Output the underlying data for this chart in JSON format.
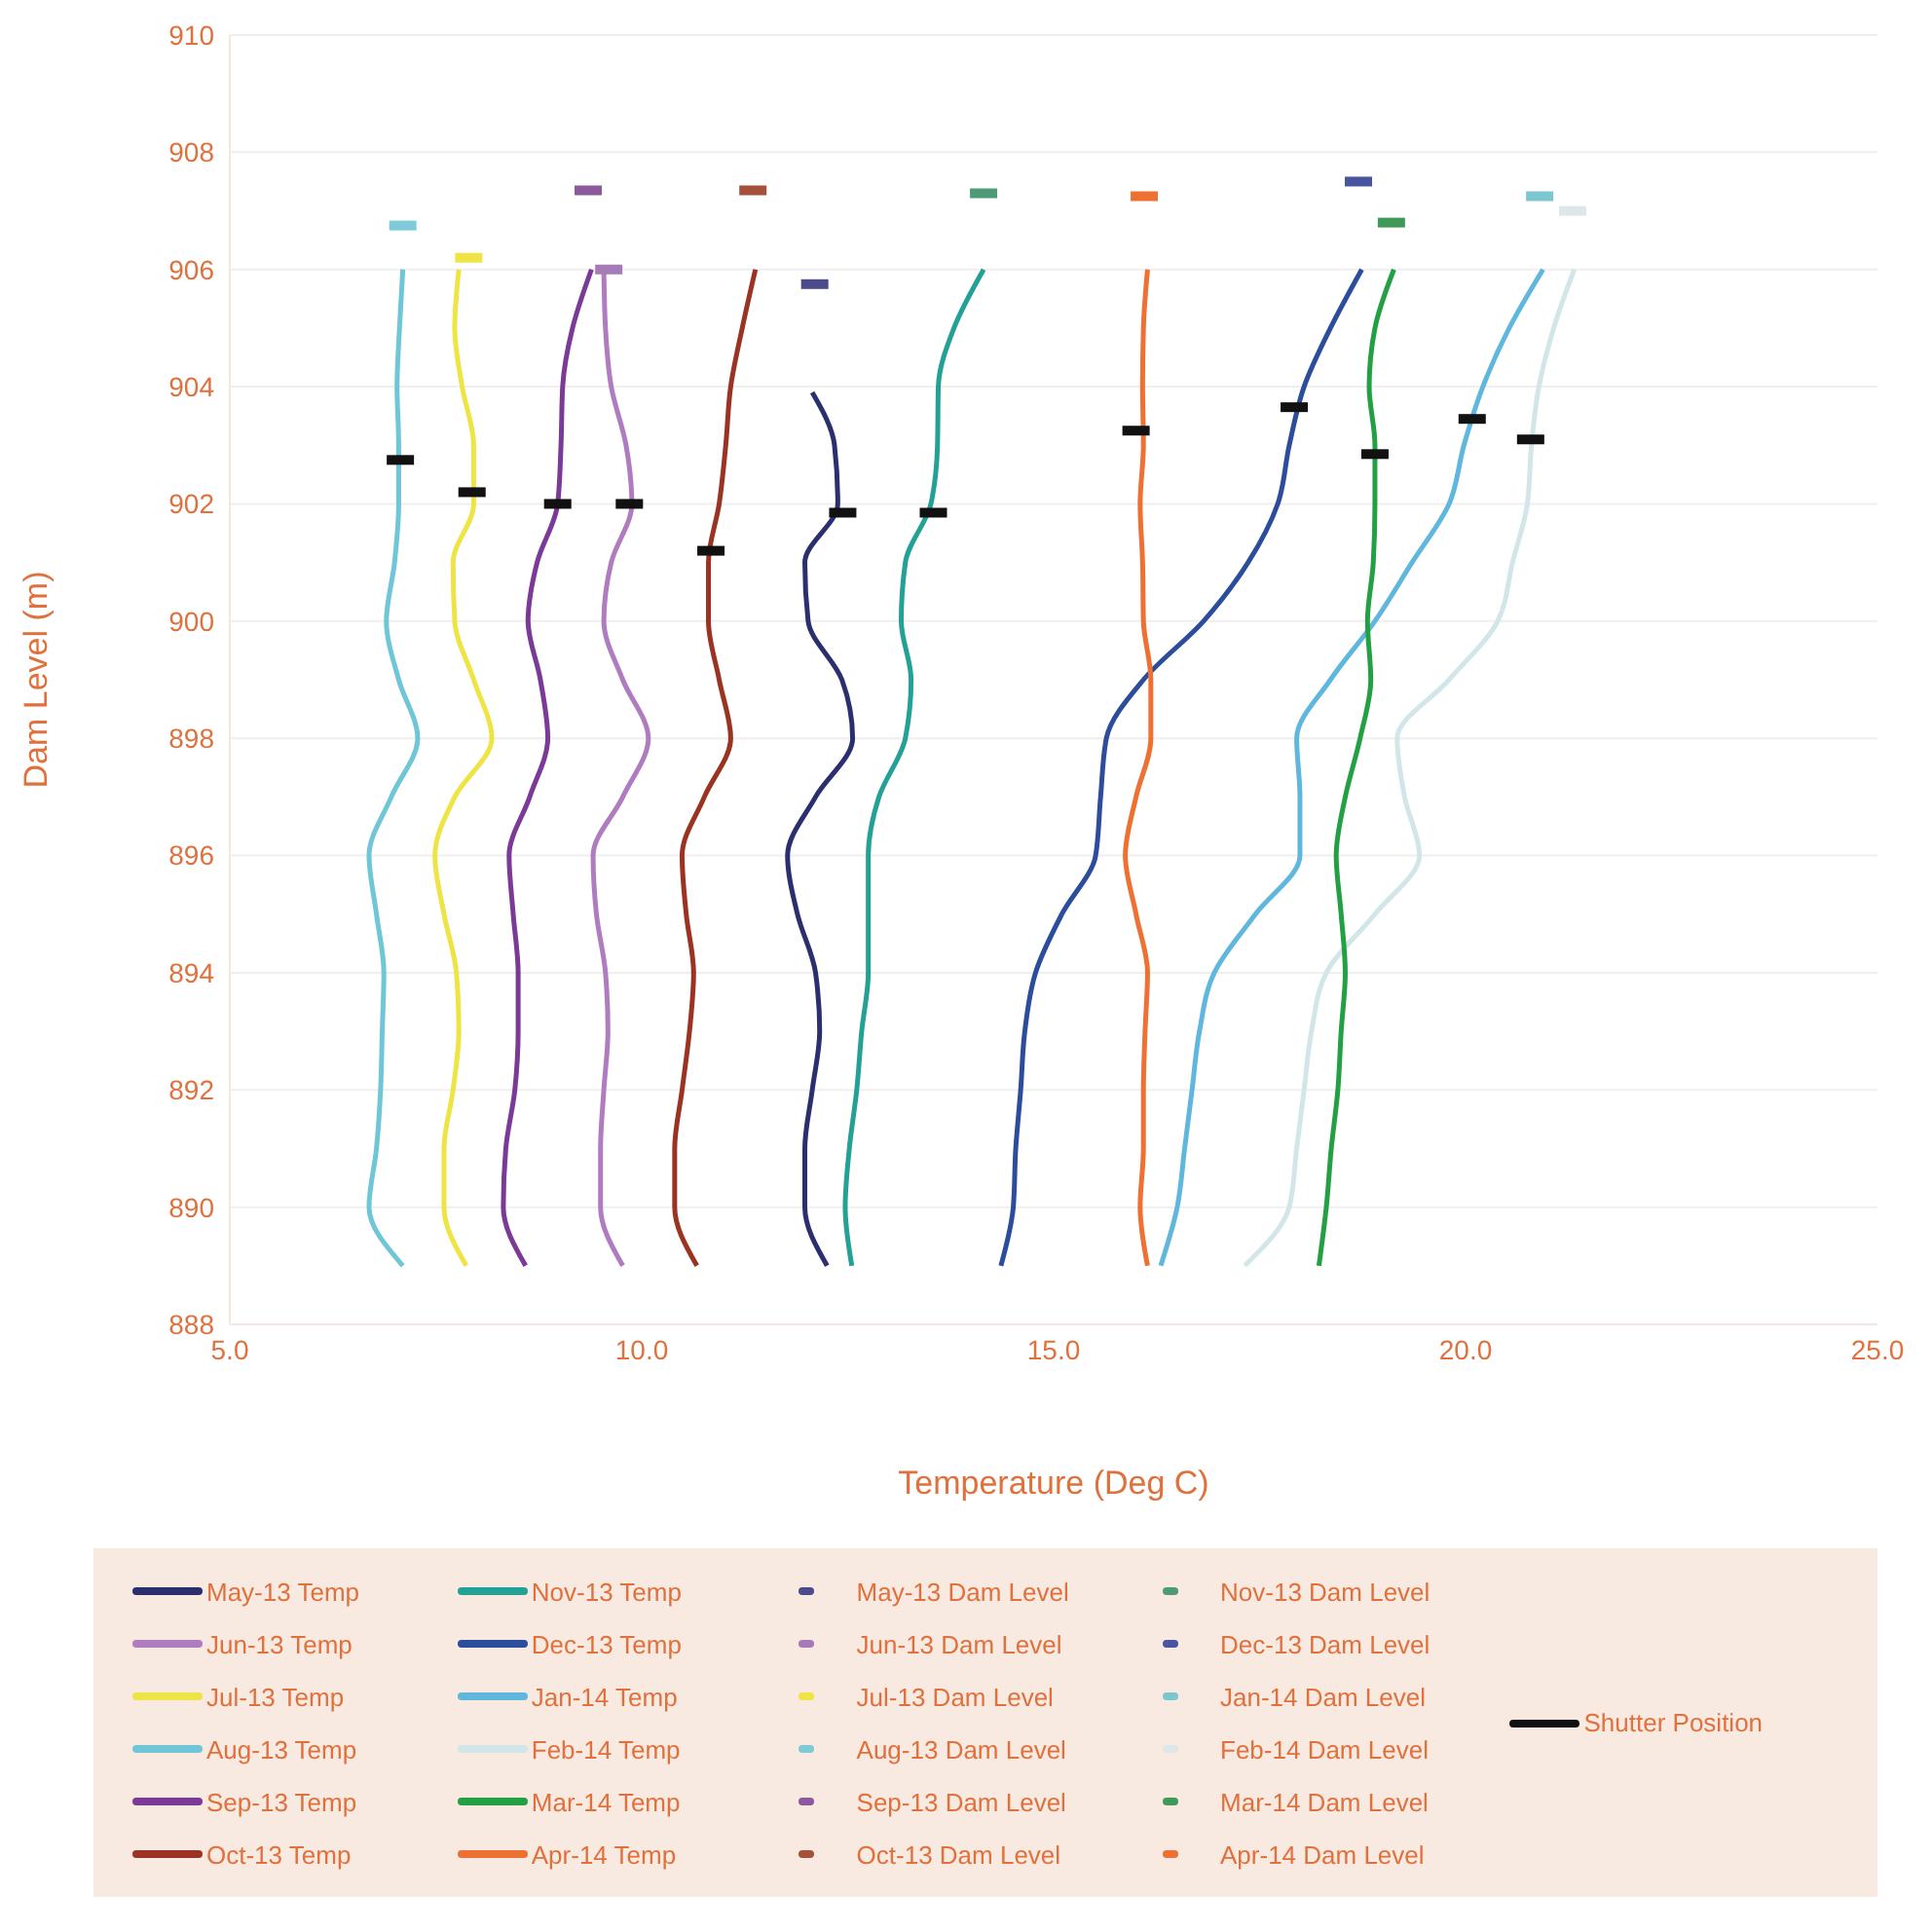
{
  "chart_data": {
    "type": "line",
    "xlabel": "Temperature (Deg C)",
    "ylabel": "Dam Level (m)",
    "xlim": [
      5,
      25
    ],
    "xticks": [
      {
        "value": 5,
        "label": "5.0"
      },
      {
        "value": 10,
        "label": "10.0"
      },
      {
        "value": 15,
        "label": "15.0"
      },
      {
        "value": 20,
        "label": "20.0"
      },
      {
        "value": 25,
        "label": "25.0"
      }
    ],
    "ylim": [
      888,
      910
    ],
    "yticks": [
      888,
      890,
      892,
      894,
      896,
      898,
      900,
      902,
      904,
      906,
      908,
      910
    ],
    "grid": "y",
    "legend": "bottom",
    "marker": "none",
    "series": [
      {
        "name": "May-13 Temp",
        "type": "line",
        "color": "#2b2f6e",
        "x": [
          12.07,
          12.34,
          12.38,
          11.98,
          12.02,
          12.43,
          12.56,
          12.11,
          11.77,
          11.89,
          12.11,
          12.16,
          12.07,
          11.98,
          11.98,
          12.25
        ],
        "values": [
          903.9,
          903,
          902,
          901,
          900,
          899,
          898,
          897,
          896,
          895,
          894,
          893,
          892,
          891,
          890,
          889
        ]
      },
      {
        "name": "Jun-13 Temp",
        "type": "line",
        "color": "#b07cc0",
        "x": [
          9.54,
          9.56,
          9.63,
          9.81,
          9.88,
          9.63,
          9.54,
          9.77,
          10.08,
          9.77,
          9.41,
          9.45,
          9.56,
          9.59,
          9.54,
          9.5,
          9.5,
          9.77
        ],
        "values": [
          906,
          905,
          904,
          903,
          902,
          901,
          900,
          899,
          898,
          897,
          896,
          895,
          894,
          893,
          892,
          891,
          890,
          889
        ]
      },
      {
        "name": "Jul-13 Temp",
        "type": "line",
        "color": "#eee445",
        "x": [
          7.78,
          7.73,
          7.82,
          7.96,
          7.96,
          7.71,
          7.73,
          7.96,
          8.18,
          7.73,
          7.49,
          7.6,
          7.75,
          7.78,
          7.71,
          7.6,
          7.6,
          7.87
        ],
        "values": [
          906,
          905,
          904,
          903,
          902,
          901,
          900,
          899,
          898,
          897,
          896,
          895,
          894,
          893,
          892,
          891,
          890,
          889
        ]
      },
      {
        "name": "Aug-13 Temp",
        "type": "line",
        "color": "#6ec6d6",
        "x": [
          7.1,
          7.06,
          7.03,
          7.05,
          7.05,
          7.0,
          6.9,
          7.05,
          7.28,
          6.96,
          6.69,
          6.78,
          6.87,
          6.85,
          6.83,
          6.78,
          6.69,
          7.1
        ],
        "values": [
          906,
          905,
          904,
          903,
          902,
          901,
          900,
          899,
          898,
          897,
          896,
          895,
          894,
          893,
          892,
          891,
          890,
          889
        ]
      },
      {
        "name": "Sep-13 Temp",
        "type": "line",
        "color": "#7b3a98",
        "x": [
          9.39,
          9.16,
          9.04,
          9.02,
          8.98,
          8.73,
          8.62,
          8.77,
          8.86,
          8.64,
          8.39,
          8.44,
          8.5,
          8.5,
          8.46,
          8.35,
          8.32,
          8.59
        ],
        "values": [
          906,
          905,
          904,
          903,
          902,
          901,
          900,
          899,
          898,
          897,
          896,
          895,
          894,
          893,
          892,
          891,
          890,
          889
        ]
      },
      {
        "name": "Oct-13 Temp",
        "type": "line",
        "color": "#9b3322",
        "x": [
          11.38,
          11.22,
          11.08,
          11.02,
          10.94,
          10.81,
          10.81,
          10.94,
          11.08,
          10.76,
          10.49,
          10.54,
          10.63,
          10.58,
          10.49,
          10.4,
          10.4,
          10.67
        ],
        "values": [
          906,
          905,
          904,
          903,
          902,
          901,
          900,
          899,
          898,
          897,
          896,
          895,
          894,
          893,
          892,
          891,
          890,
          889
        ]
      },
      {
        "name": "Nov-13 Temp",
        "type": "line",
        "color": "#23a196",
        "x": [
          14.15,
          13.79,
          13.6,
          13.59,
          13.51,
          13.2,
          13.15,
          13.27,
          13.2,
          12.88,
          12.75,
          12.75,
          12.75,
          12.67,
          12.61,
          12.52,
          12.47,
          12.55
        ],
        "values": [
          906,
          905,
          904,
          903,
          902,
          901,
          900,
          899,
          898,
          897,
          896,
          895,
          894,
          893,
          892,
          891,
          890,
          889
        ]
      },
      {
        "name": "Dec-13 Temp",
        "type": "line",
        "color": "#2c4c9c",
        "x": [
          18.74,
          18.36,
          18.04,
          17.86,
          17.72,
          17.36,
          16.82,
          16.09,
          15.64,
          15.57,
          15.51,
          15.1,
          14.78,
          14.65,
          14.6,
          14.54,
          14.51,
          14.36
        ],
        "values": [
          906,
          905,
          904,
          903,
          902,
          901,
          900,
          899,
          898,
          897,
          896,
          895,
          894,
          893,
          892,
          891,
          890,
          889
        ]
      },
      {
        "name": "Jan-14 Temp",
        "type": "line",
        "color": "#5fb7de",
        "x": [
          20.94,
          20.53,
          20.21,
          19.98,
          19.8,
          19.35,
          18.9,
          18.36,
          17.95,
          17.99,
          17.99,
          17.45,
          16.95,
          16.77,
          16.68,
          16.59,
          16.5,
          16.3
        ],
        "values": [
          906,
          905,
          904,
          903,
          902,
          901,
          900,
          899,
          898,
          897,
          896,
          895,
          894,
          893,
          892,
          891,
          890,
          889
        ]
      },
      {
        "name": "Feb-14 Temp",
        "type": "line",
        "color": "#d2e6e9",
        "x": [
          21.32,
          21.07,
          20.89,
          20.8,
          20.75,
          20.57,
          20.39,
          19.8,
          19.17,
          19.26,
          19.44,
          18.9,
          18.31,
          18.13,
          18.04,
          17.95,
          17.86,
          17.32
        ],
        "values": [
          906,
          905,
          904,
          903,
          902,
          901,
          900,
          899,
          898,
          897,
          896,
          895,
          894,
          893,
          892,
          891,
          890,
          889
        ]
      },
      {
        "name": "Mar-14 Temp",
        "type": "line",
        "color": "#23a044",
        "x": [
          19.13,
          18.9,
          18.83,
          18.9,
          18.9,
          18.88,
          18.81,
          18.85,
          18.72,
          18.54,
          18.43,
          18.49,
          18.54,
          18.49,
          18.45,
          18.37,
          18.31,
          18.22
        ],
        "values": [
          906,
          905,
          904,
          903,
          902,
          901,
          900,
          899,
          898,
          897,
          896,
          895,
          894,
          893,
          892,
          891,
          890,
          889
        ]
      },
      {
        "name": "Apr-14 Temp",
        "type": "line",
        "color": "#ef7033",
        "x": [
          16.14,
          16.09,
          16.08,
          16.09,
          16.05,
          16.08,
          16.09,
          16.18,
          16.18,
          16.0,
          15.87,
          16.0,
          16.14,
          16.11,
          16.09,
          16.09,
          16.05,
          16.14
        ],
        "values": [
          906,
          905,
          904,
          903,
          902,
          901,
          900,
          899,
          898,
          897,
          896,
          895,
          894,
          893,
          892,
          891,
          890,
          889
        ]
      },
      {
        "name": "May-13 Dam Level",
        "type": "scatter",
        "marker": "square",
        "color": "#4a4a8c",
        "x": [
          12.1
        ],
        "values": [
          905.75
        ]
      },
      {
        "name": "Jun-13 Dam Level",
        "type": "scatter",
        "marker": "square",
        "color": "#a67cb8",
        "x": [
          9.6
        ],
        "values": [
          906.0
        ]
      },
      {
        "name": "Jul-13 Dam Level",
        "type": "scatter",
        "marker": "square",
        "color": "#eee445",
        "x": [
          7.9
        ],
        "values": [
          906.2
        ]
      },
      {
        "name": "Aug-13 Dam Level",
        "type": "scatter",
        "marker": "square",
        "color": "#7ecad6",
        "x": [
          7.1
        ],
        "values": [
          906.75
        ]
      },
      {
        "name": "Sep-13 Dam Level",
        "type": "scatter",
        "marker": "square",
        "color": "#8a5a9c",
        "x": [
          9.35
        ],
        "values": [
          907.35
        ]
      },
      {
        "name": "Oct-13 Dam Level",
        "type": "scatter",
        "marker": "square",
        "color": "#a5503a",
        "x": [
          11.35
        ],
        "values": [
          907.35
        ]
      },
      {
        "name": "Nov-13 Dam Level",
        "type": "scatter",
        "marker": "square",
        "color": "#4e9a78",
        "x": [
          14.15
        ],
        "values": [
          907.3
        ]
      },
      {
        "name": "Dec-13 Dam Level",
        "type": "scatter",
        "marker": "square",
        "color": "#4a55a0",
        "x": [
          18.7
        ],
        "values": [
          907.5
        ]
      },
      {
        "name": "Jan-14 Dam Level",
        "type": "scatter",
        "marker": "square",
        "color": "#7cc6d0",
        "x": [
          20.9
        ],
        "values": [
          907.25
        ]
      },
      {
        "name": "Feb-14 Dam Level",
        "type": "scatter",
        "marker": "square",
        "color": "#dde6e8",
        "x": [
          21.3
        ],
        "values": [
          907.0
        ]
      },
      {
        "name": "Mar-14 Dam Level",
        "type": "scatter",
        "marker": "square",
        "color": "#3f9a58",
        "x": [
          19.1
        ],
        "values": [
          906.8
        ]
      },
      {
        "name": "Apr-14 Dam Level",
        "type": "scatter",
        "marker": "square",
        "color": "#ef7033",
        "x": [
          16.1
        ],
        "values": [
          907.25
        ]
      },
      {
        "name": "Shutter Position",
        "type": "scatter",
        "marker": "square",
        "color": "#111111",
        "x": [
          7.07,
          7.94,
          8.98,
          9.85,
          10.84,
          12.44,
          13.54,
          16.0,
          17.92,
          18.9,
          20.08,
          20.79
        ],
        "values": [
          902.75,
          902.2,
          902.0,
          902.0,
          901.2,
          901.85,
          901.85,
          903.25,
          903.65,
          902.85,
          903.45,
          903.1
        ]
      }
    ]
  }
}
